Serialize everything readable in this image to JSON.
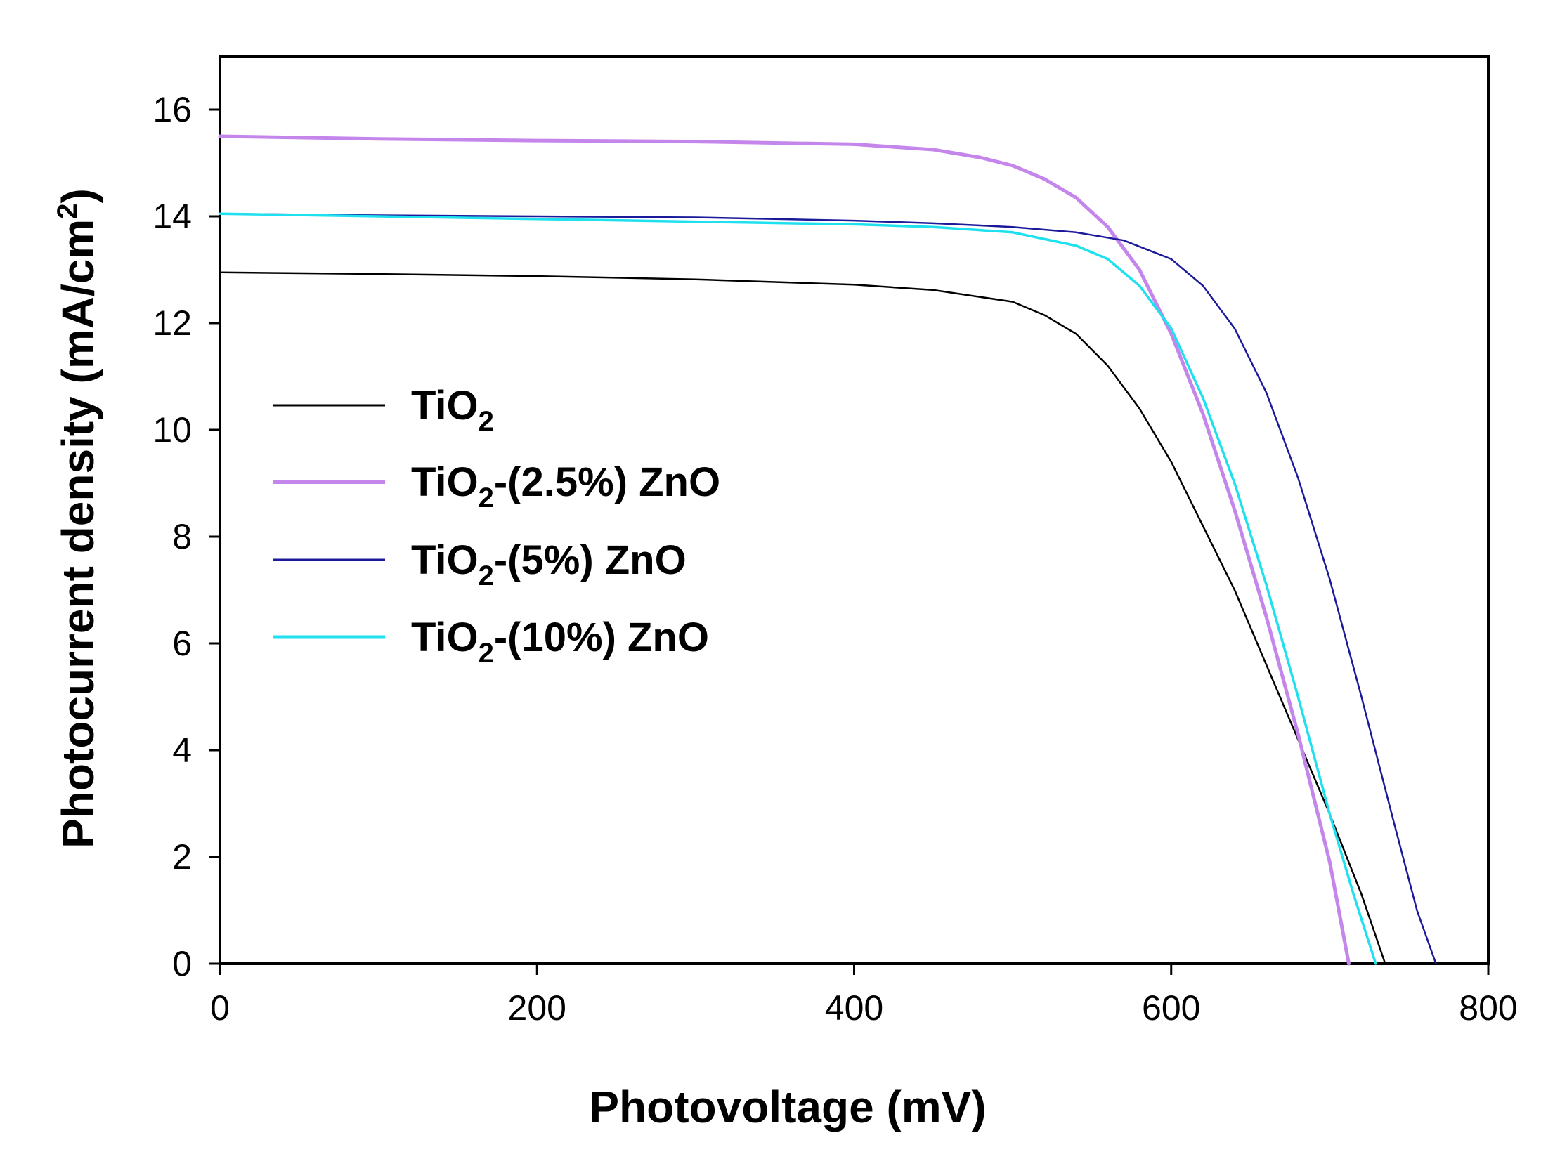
{
  "chart_data": {
    "type": "line",
    "title": "",
    "xlabel": "Photovoltage (mV)",
    "ylabel": "Photocurrent density (mA/cm2)",
    "ylabel_parts": {
      "main": "Photocurrent density (mA/cm",
      "sup": "2",
      "tail": ")"
    },
    "xlim": [
      0,
      800
    ],
    "ylim": [
      0,
      17
    ],
    "xticks": [
      0,
      200,
      400,
      600,
      800
    ],
    "yticks": [
      0,
      2,
      4,
      6,
      8,
      10,
      12,
      14,
      16
    ],
    "grid": false,
    "legend_position": "left",
    "series": [
      {
        "name": "TiO2",
        "label_parts": {
          "base": "TiO",
          "sub": "2",
          "suffix": ""
        },
        "color": "#000000",
        "x": [
          0,
          100,
          200,
          300,
          400,
          450,
          500,
          520,
          540,
          560,
          580,
          600,
          620,
          640,
          660,
          680,
          700,
          720,
          735
        ],
        "y": [
          12.95,
          12.92,
          12.88,
          12.82,
          12.72,
          12.62,
          12.4,
          12.15,
          11.8,
          11.2,
          10.4,
          9.4,
          8.2,
          7.0,
          5.6,
          4.2,
          2.8,
          1.3,
          0
        ]
      },
      {
        "name": "TiO2-(2.5%) ZnO",
        "label_parts": {
          "base": "TiO",
          "sub": "2",
          "suffix": "-(2.5%) ZnO"
        },
        "color": "#c586ec",
        "x": [
          0,
          100,
          200,
          300,
          400,
          450,
          480,
          500,
          520,
          540,
          560,
          580,
          600,
          620,
          640,
          660,
          680,
          700,
          712
        ],
        "y": [
          15.5,
          15.45,
          15.42,
          15.4,
          15.35,
          15.25,
          15.1,
          14.95,
          14.7,
          14.35,
          13.8,
          13.0,
          11.8,
          10.3,
          8.5,
          6.5,
          4.3,
          1.9,
          0
        ]
      },
      {
        "name": "TiO2-(5%) ZnO",
        "label_parts": {
          "base": "TiO",
          "sub": "2",
          "suffix": "-(5%) ZnO"
        },
        "color": "#1a1a9a",
        "x": [
          0,
          100,
          200,
          300,
          400,
          450,
          500,
          540,
          570,
          600,
          620,
          640,
          660,
          680,
          700,
          720,
          740,
          755,
          767
        ],
        "y": [
          14.05,
          14.02,
          14.0,
          13.98,
          13.92,
          13.87,
          13.8,
          13.7,
          13.55,
          13.2,
          12.7,
          11.9,
          10.7,
          9.1,
          7.2,
          5.0,
          2.7,
          1.0,
          0
        ]
      },
      {
        "name": "TiO2-(10%) ZnO",
        "label_parts": {
          "base": "TiO",
          "sub": "2",
          "suffix": "-(10%) ZnO"
        },
        "color": "#1fe0ef",
        "x": [
          0,
          100,
          200,
          300,
          400,
          450,
          500,
          540,
          560,
          580,
          600,
          620,
          640,
          660,
          680,
          700,
          715,
          729
        ],
        "y": [
          14.05,
          14.0,
          13.95,
          13.9,
          13.85,
          13.8,
          13.7,
          13.45,
          13.2,
          12.7,
          11.9,
          10.6,
          9.0,
          7.1,
          5.0,
          2.8,
          1.3,
          0
        ]
      }
    ]
  }
}
